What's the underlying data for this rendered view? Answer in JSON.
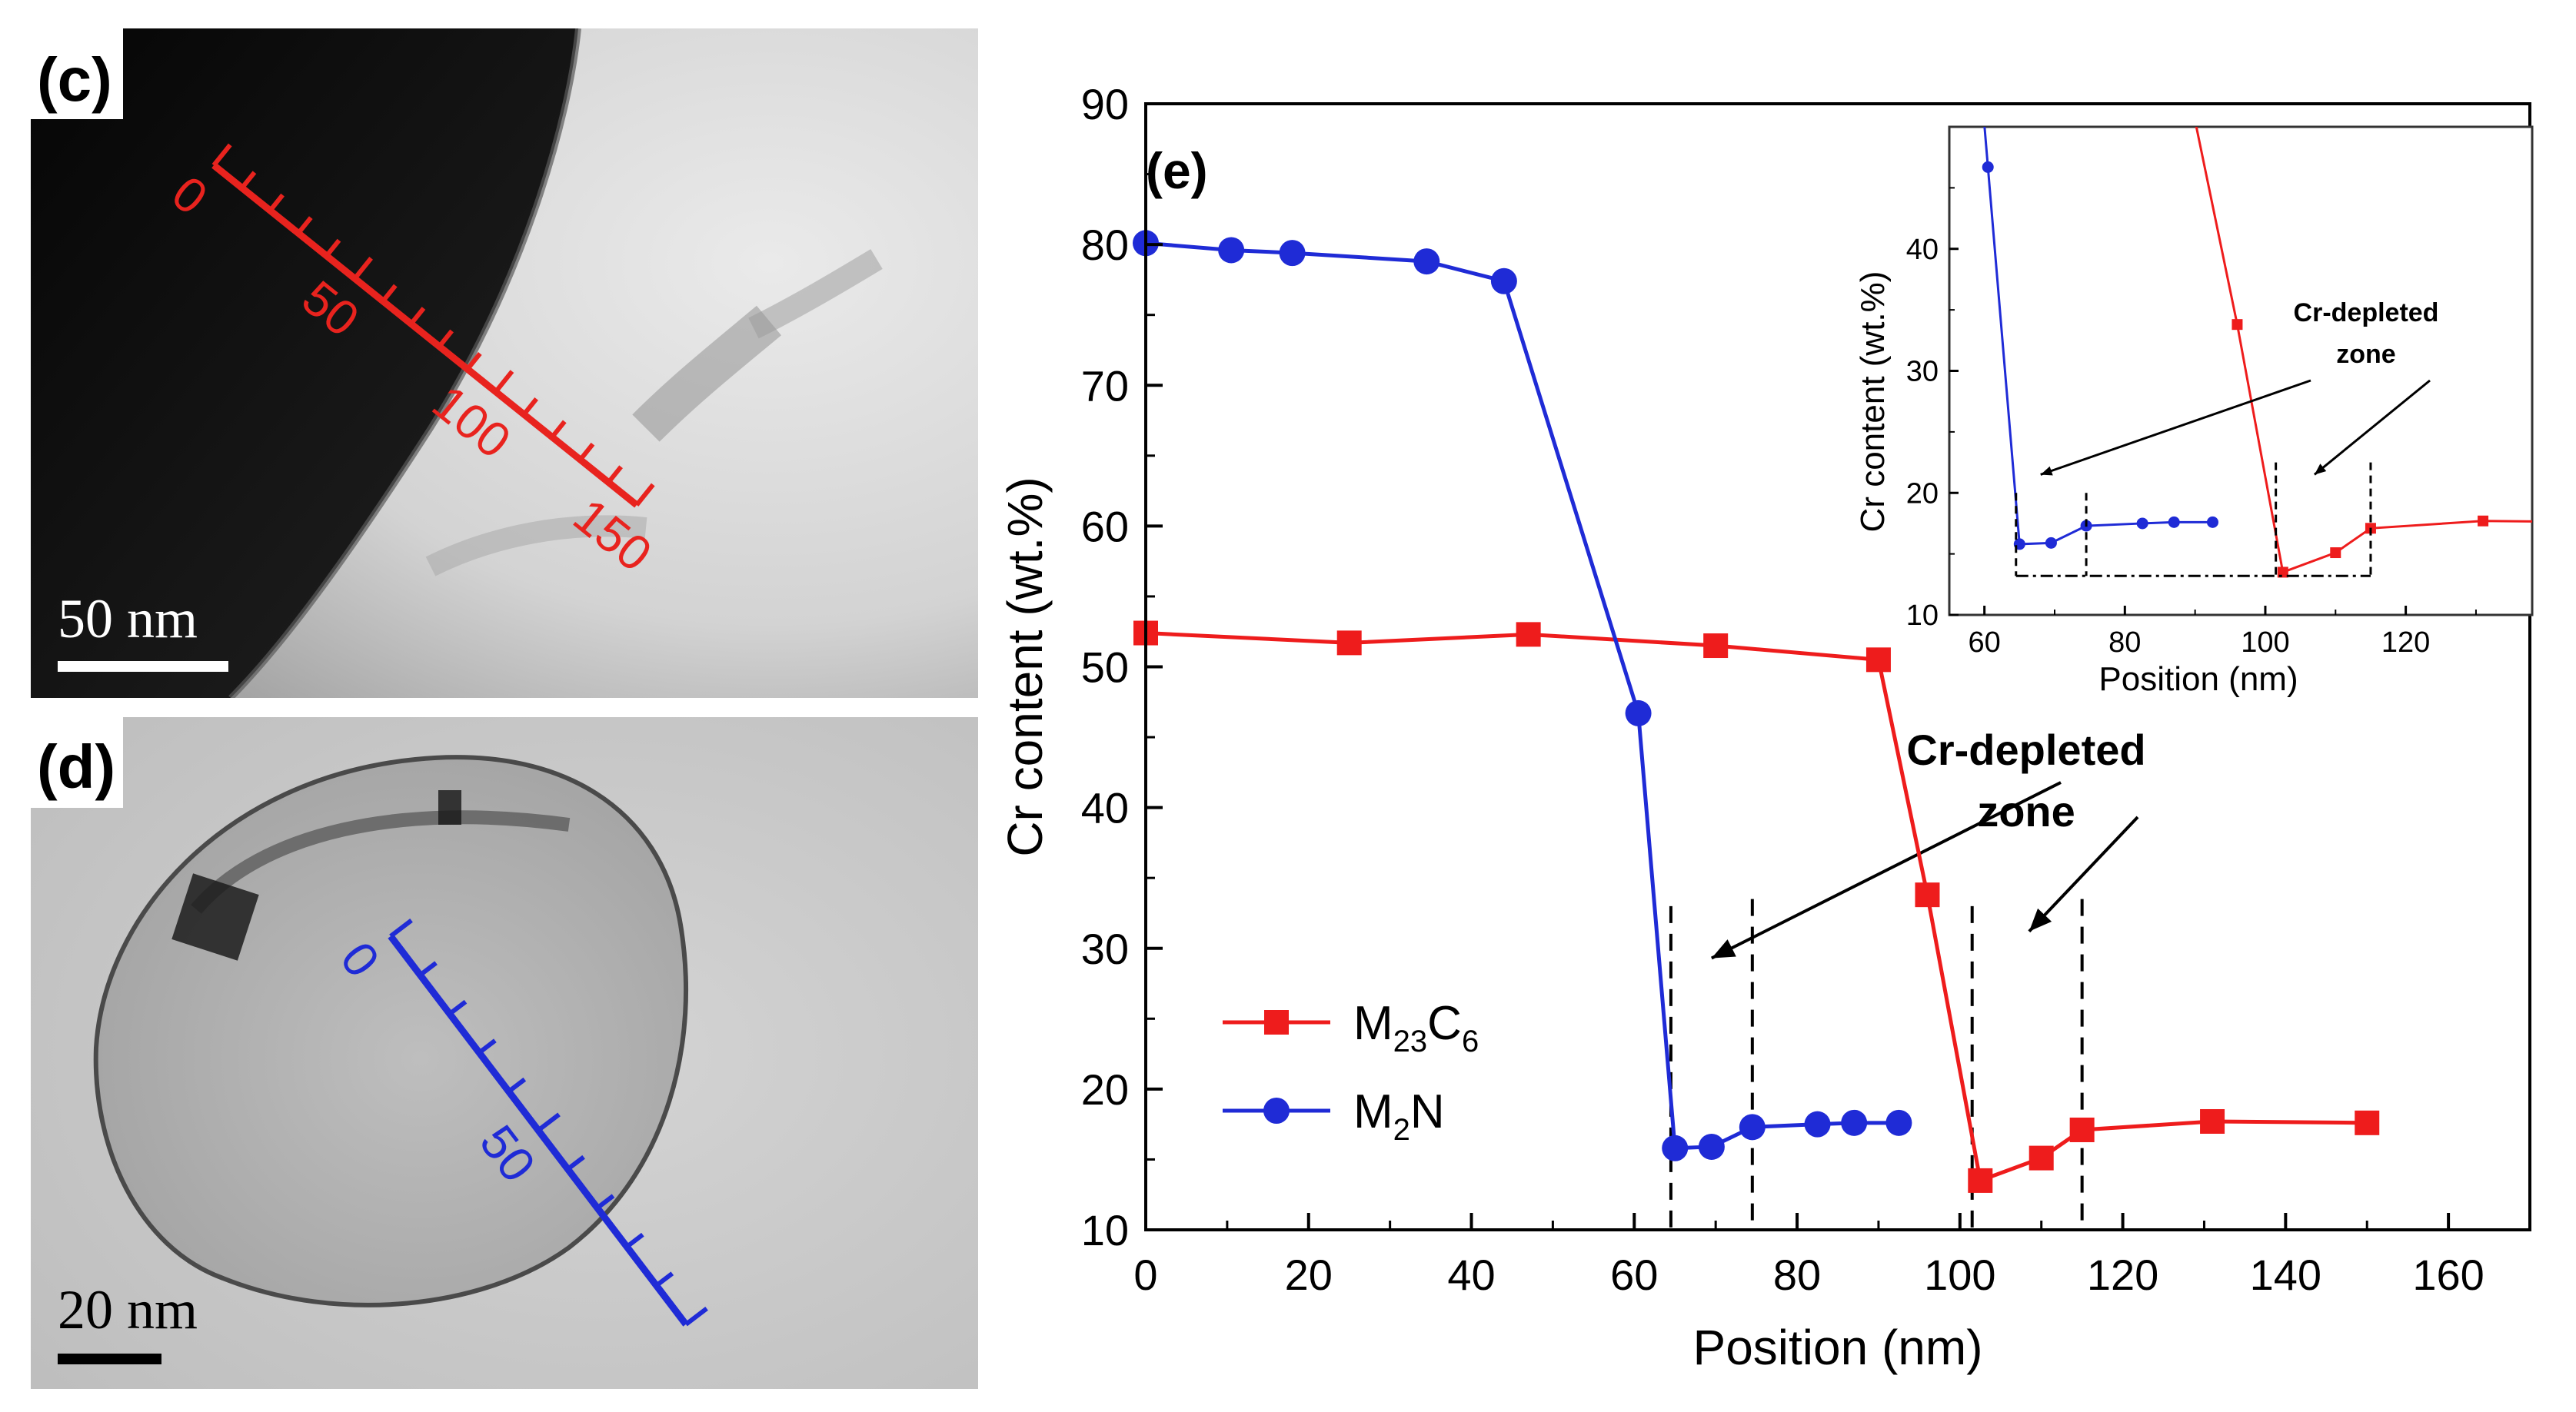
{
  "panels": {
    "c": {
      "label": "(c)",
      "scalebar": "50 nm",
      "linescan_ticks": [
        "0",
        "50",
        "100",
        "150"
      ],
      "line_color": "#e8231e"
    },
    "d": {
      "label": "(d)",
      "scalebar": "20 nm",
      "linescan_ticks": [
        "0",
        "50"
      ],
      "line_color": "#1f2bd6"
    }
  },
  "chart_data": [
    {
      "panel": "(e)",
      "type": "line",
      "xlabel": "Position (nm)",
      "ylabel": "Cr content (wt.%)",
      "xlim": [
        0,
        170
      ],
      "ylim": [
        10,
        90
      ],
      "xticks": [
        0,
        20,
        40,
        60,
        80,
        100,
        120,
        140,
        160
      ],
      "yticks": [
        10,
        20,
        30,
        40,
        50,
        60,
        70,
        80,
        90
      ],
      "annotation": {
        "line1": "Cr-depleted",
        "line2": "zone"
      },
      "depleted_markers_x": [
        64.5,
        74.5,
        101.5,
        115
      ],
      "legend": [
        {
          "series": 0,
          "text": "M",
          "sub": "23",
          "text2": "C",
          "sub2": "6"
        },
        {
          "series": 1,
          "text": "M",
          "sub": "2",
          "text2": "N",
          "sub2": ""
        }
      ],
      "series": [
        {
          "name": "M23C6",
          "color": "#ee1c1c",
          "marker": "square",
          "x": [
            0,
            25,
            47,
            70,
            90,
            96,
            102.5,
            110,
            115,
            131,
            150
          ],
          "y": [
            52.4,
            51.7,
            52.3,
            51.5,
            50.5,
            33.8,
            13.5,
            15.1,
            17.1,
            17.7,
            17.6
          ]
        },
        {
          "name": "M2N",
          "color": "#1f2bd6",
          "marker": "circle",
          "x": [
            0,
            10.5,
            18,
            34.5,
            44,
            60.5,
            65,
            69.5,
            74.5,
            82.5,
            87,
            92.5
          ],
          "y": [
            80.1,
            79.6,
            79.4,
            78.8,
            77.4,
            46.7,
            15.8,
            15.9,
            17.3,
            17.5,
            17.6,
            17.6
          ]
        }
      ]
    },
    {
      "panel": "inset",
      "type": "line",
      "xlabel": "Position (nm)",
      "ylabel": "Cr content (wt.%)",
      "xlim": [
        55,
        138
      ],
      "ylim": [
        10,
        50
      ],
      "xticks": [
        60,
        80,
        100,
        120
      ],
      "yticks": [
        10,
        20,
        30,
        40
      ],
      "annotation": {
        "line1": "Cr-depleted",
        "line2": "zone"
      },
      "series": [
        {
          "name": "M23C6",
          "color": "#ee1c1c",
          "x": [
            90,
            96,
            102.5,
            110,
            115,
            131,
            150
          ],
          "y": [
            50.5,
            33.8,
            13.5,
            15.1,
            17.1,
            17.7,
            17.6
          ]
        },
        {
          "name": "M2N",
          "color": "#1f2bd6",
          "x": [
            60.5,
            65,
            69.5,
            74.5,
            82.5,
            87,
            92.5
          ],
          "y": [
            46.7,
            15.8,
            15.9,
            17.3,
            17.5,
            17.6,
            17.6
          ]
        }
      ]
    }
  ]
}
